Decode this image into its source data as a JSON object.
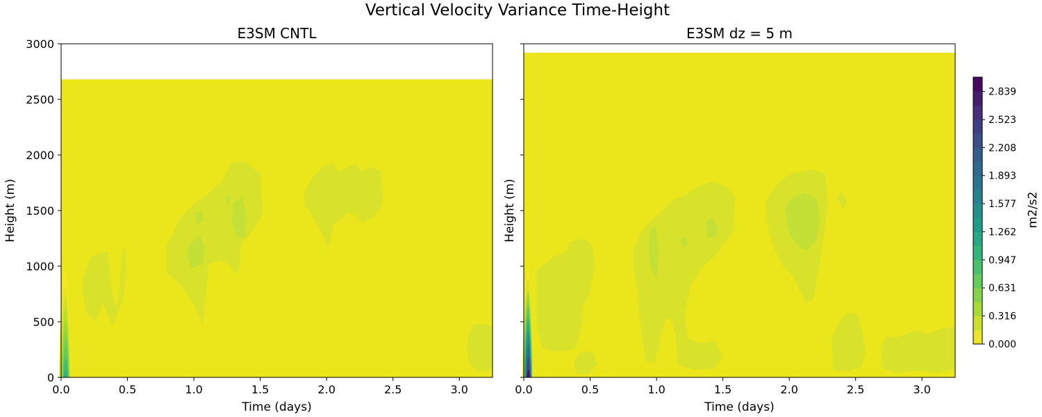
{
  "figure": {
    "title": "Vertical Velocity Variance Time-Height"
  },
  "chart_data": [
    {
      "type": "heatmap",
      "title": "E3SM CNTL",
      "xlabel": "Time (days)",
      "ylabel": "Height (m)",
      "xlim": [
        0.0,
        3.25
      ],
      "ylim": [
        0,
        3000
      ],
      "xticks": [
        "0.0",
        "0.5",
        "1.0",
        "1.5",
        "2.0",
        "2.5",
        "3.0"
      ],
      "xtick_values": [
        0.0,
        0.5,
        1.0,
        1.5,
        2.0,
        2.5,
        3.0
      ],
      "yticks": [
        "0",
        "500",
        "1000",
        "1500",
        "2000",
        "2500",
        "3000"
      ],
      "ytick_values": [
        0,
        500,
        1000,
        1500,
        2000,
        2500,
        3000
      ],
      "data_top_height": 2680,
      "background_value": 0.0,
      "features": [
        {
          "name": "surface-spike",
          "day_range": [
            0.0,
            0.09
          ],
          "height_range": [
            0,
            960
          ],
          "peak_value": 1.1
        },
        {
          "name": "cloud-layer-0.3d",
          "day_range": [
            0.15,
            0.5
          ],
          "height_range": [
            480,
            1250
          ],
          "value": 0.2
        },
        {
          "name": "cloud-layer-1.2d",
          "day_range": [
            0.8,
            1.5
          ],
          "height_range": [
            480,
            1950
          ],
          "value": 0.2
        },
        {
          "name": "core-1.1d",
          "day_range": [
            1.0,
            1.1
          ],
          "height_range": [
            1050,
            1300
          ],
          "value": 0.35
        },
        {
          "name": "core-1.35d",
          "day_range": [
            1.3,
            1.4
          ],
          "height_range": [
            1250,
            1650
          ],
          "value": 0.35
        },
        {
          "name": "cloud-layer-2.1d",
          "day_range": [
            1.8,
            2.55
          ],
          "height_range": [
            1130,
            1930
          ],
          "value": 0.2
        },
        {
          "name": "late-surface",
          "day_range": [
            3.05,
            3.25
          ],
          "height_range": [
            100,
            430
          ],
          "value": 0.2
        }
      ]
    },
    {
      "type": "heatmap",
      "title": "E3SM dz = 5 m",
      "xlabel": "Time (days)",
      "ylabel": "Height (m)",
      "xlim": [
        0.0,
        3.25
      ],
      "ylim": [
        0,
        3000
      ],
      "xticks": [
        "0.0",
        "0.5",
        "1.0",
        "1.5",
        "2.0",
        "2.5",
        "3.0"
      ],
      "xtick_values": [
        0.0,
        0.5,
        1.0,
        1.5,
        2.0,
        2.5,
        3.0
      ],
      "yticks": [
        "",
        "",
        "",
        "",
        "",
        "",
        ""
      ],
      "ytick_values": [
        0,
        500,
        1000,
        1500,
        2000,
        2500,
        3000
      ],
      "data_top_height": 2920,
      "background_value": 0.0,
      "features": [
        {
          "name": "surface-spike",
          "day_range": [
            0.0,
            0.08
          ],
          "height_range": [
            0,
            1000
          ],
          "peak_value": 2.9
        },
        {
          "name": "cloud-layer-0.4d",
          "day_range": [
            0.1,
            0.55
          ],
          "height_range": [
            400,
            1200
          ],
          "value": 0.2
        },
        {
          "name": "low-blob-0.4d",
          "day_range": [
            0.4,
            0.55
          ],
          "height_range": [
            20,
            250
          ],
          "value": 0.2
        },
        {
          "name": "cloud-layer-1.3d",
          "day_range": [
            0.85,
            1.6
          ],
          "height_range": [
            50,
            1750
          ],
          "value": 0.2
        },
        {
          "name": "cloud-layer-2.1d",
          "day_range": [
            1.8,
            2.3
          ],
          "height_range": [
            700,
            1850
          ],
          "value": 0.25
        },
        {
          "name": "core-2.1d",
          "day_range": [
            2.0,
            2.2
          ],
          "height_range": [
            1250,
            1650
          ],
          "value": 0.35
        },
        {
          "name": "late-2.5d",
          "day_range": [
            2.35,
            2.5
          ],
          "height_range": [
            20,
            600
          ],
          "value": 0.2
        },
        {
          "name": "late-3.0d",
          "day_range": [
            2.7,
            3.25
          ],
          "height_range": [
            30,
            450
          ],
          "value": 0.2
        }
      ]
    }
  ],
  "colorbar": {
    "label": "m2/s2",
    "min": 0.0,
    "max": 3.0,
    "ticks": [
      "0.000",
      "0.316",
      "0.631",
      "0.947",
      "1.262",
      "1.577",
      "1.893",
      "2.208",
      "2.523",
      "2.839"
    ],
    "tick_values": [
      0.0,
      0.316,
      0.631,
      0.947,
      1.262,
      1.577,
      1.893,
      2.208,
      2.523,
      2.839
    ],
    "levels": 19,
    "colormap": "viridis_r"
  },
  "colors": {
    "background_field": "#ebe51c",
    "light_contour": "#d8e22a",
    "core_contour": "#c4df35"
  }
}
